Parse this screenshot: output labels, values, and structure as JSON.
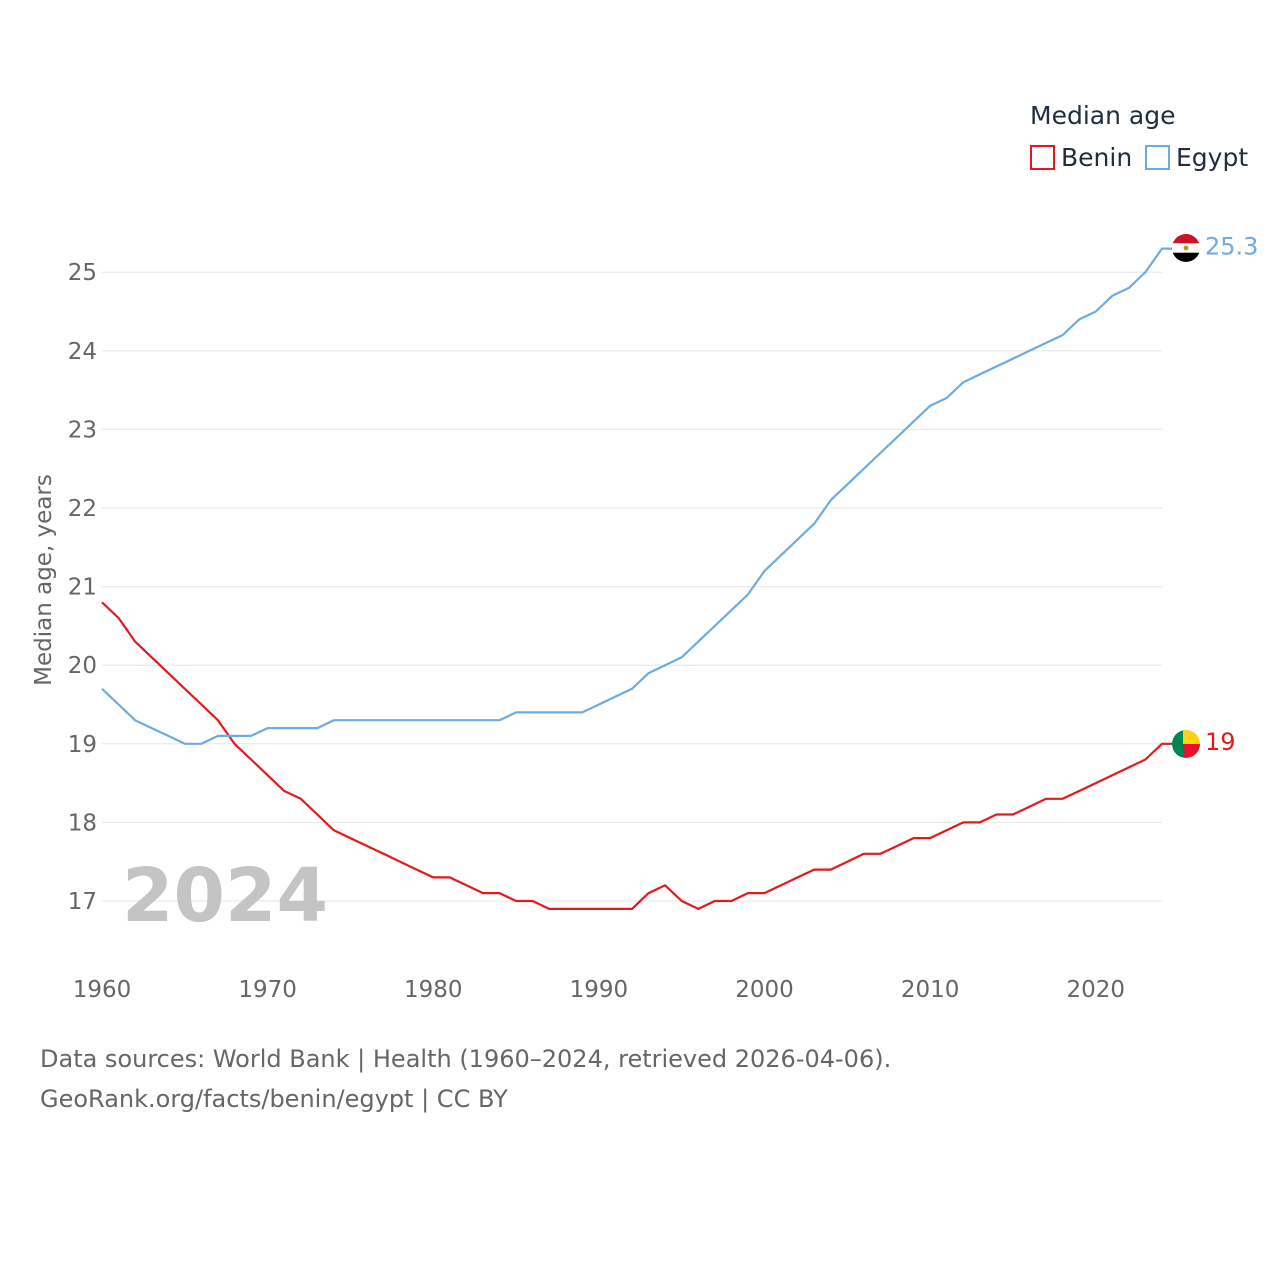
{
  "legend": {
    "title": "Median age",
    "items": [
      {
        "label": "Benin",
        "color": "#e31a1c"
      },
      {
        "label": "Egypt",
        "color": "#6aace3"
      }
    ]
  },
  "source": {
    "line1": "Data sources: World Bank | Health (1960–2024, retrieved 2026-04-06).",
    "line2": "GeoRank.org/facts/benin/egypt | CC BY"
  },
  "chart_data": {
    "type": "line",
    "title": "Median age",
    "xlabel": "",
    "ylabel": "Median age, years",
    "xlim": [
      1960,
      2024
    ],
    "ylim": [
      16.7,
      25.3
    ],
    "grid": true,
    "current_year": "2024",
    "x_ticks": [
      "1960",
      "1970",
      "1980",
      "1990",
      "2000",
      "2010",
      "2020"
    ],
    "y_ticks": [
      "17",
      "18",
      "19",
      "20",
      "21",
      "22",
      "23",
      "24",
      "25"
    ],
    "x": [
      1960,
      1961,
      1962,
      1963,
      1964,
      1965,
      1966,
      1967,
      1968,
      1969,
      1970,
      1971,
      1972,
      1973,
      1974,
      1975,
      1976,
      1977,
      1978,
      1979,
      1980,
      1981,
      1982,
      1983,
      1984,
      1985,
      1986,
      1987,
      1988,
      1989,
      1990,
      1991,
      1992,
      1993,
      1994,
      1995,
      1996,
      1997,
      1998,
      1999,
      2000,
      2001,
      2002,
      2003,
      2004,
      2005,
      2006,
      2007,
      2008,
      2009,
      2010,
      2011,
      2012,
      2013,
      2014,
      2015,
      2016,
      2017,
      2018,
      2019,
      2020,
      2021,
      2022,
      2023,
      2024
    ],
    "series": [
      {
        "name": "Benin",
        "color": "#e31a1c",
        "end_label": "19",
        "values": [
          20.8,
          20.6,
          20.3,
          20.1,
          19.9,
          19.7,
          19.5,
          19.3,
          19.0,
          18.8,
          18.6,
          18.4,
          18.3,
          18.1,
          17.9,
          17.8,
          17.7,
          17.6,
          17.5,
          17.4,
          17.3,
          17.3,
          17.2,
          17.1,
          17.1,
          17.0,
          17.0,
          16.9,
          16.9,
          16.9,
          16.9,
          16.9,
          16.9,
          17.1,
          17.2,
          17.0,
          16.9,
          17.0,
          17.0,
          17.1,
          17.1,
          17.2,
          17.3,
          17.4,
          17.4,
          17.5,
          17.6,
          17.6,
          17.7,
          17.8,
          17.8,
          17.9,
          18.0,
          18.0,
          18.1,
          18.1,
          18.2,
          18.3,
          18.3,
          18.4,
          18.5,
          18.6,
          18.7,
          18.8,
          19.0
        ]
      },
      {
        "name": "Egypt",
        "color": "#6aace3",
        "end_label": "25.3",
        "values": [
          19.7,
          19.5,
          19.3,
          19.2,
          19.1,
          19.0,
          19.0,
          19.1,
          19.1,
          19.1,
          19.2,
          19.2,
          19.2,
          19.2,
          19.3,
          19.3,
          19.3,
          19.3,
          19.3,
          19.3,
          19.3,
          19.3,
          19.3,
          19.3,
          19.3,
          19.4,
          19.4,
          19.4,
          19.4,
          19.4,
          19.5,
          19.6,
          19.7,
          19.9,
          20.0,
          20.1,
          20.3,
          20.5,
          20.7,
          20.9,
          21.2,
          21.4,
          21.6,
          21.8,
          22.1,
          22.3,
          22.5,
          22.7,
          22.9,
          23.1,
          23.3,
          23.4,
          23.6,
          23.7,
          23.8,
          23.9,
          24.0,
          24.1,
          24.2,
          24.4,
          24.5,
          24.7,
          24.8,
          25.0,
          25.3
        ]
      }
    ]
  }
}
